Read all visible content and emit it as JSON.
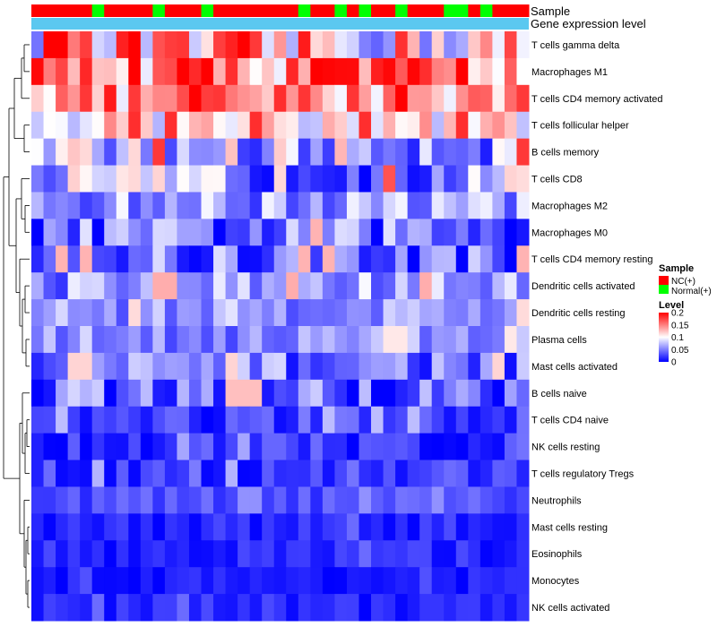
{
  "chart_data": {
    "type": "heatmap",
    "title": "",
    "annotation_labels": {
      "sample": "Sample",
      "expression": "Gene expression level"
    },
    "rows": [
      "T cells gamma delta",
      "Macrophages M1",
      "T cells CD4 memory activated",
      "T cells follicular helper",
      "B cells memory",
      "T cells CD8",
      "Macrophages M2",
      "Macrophages M0",
      "T cells CD4 memory resting",
      "Dendritic cells activated",
      "Dendritic cells resting",
      "Plasma cells",
      "Mast cells activated",
      "B cells naive",
      "T cells CD4 naive",
      "NK cells resting",
      "T cells regulatory  Tregs",
      "Neutrophils",
      "Mast cells resting",
      "Eosinophils",
      "Monocytes",
      "NK cells activated"
    ],
    "sample_groups": [
      "NC",
      "NC",
      "NC",
      "NC",
      "NC",
      "Normal",
      "NC",
      "NC",
      "NC",
      "NC",
      "Normal",
      "NC",
      "NC",
      "NC",
      "Normal",
      "NC",
      "NC",
      "NC",
      "NC",
      "NC",
      "NC",
      "NC",
      "Normal",
      "NC",
      "NC",
      "Normal",
      "NC",
      "Normal",
      "NC",
      "NC",
      "Normal",
      "NC",
      "NC",
      "NC",
      "Normal",
      "Normal",
      "NC",
      "Normal",
      "NC",
      "NC",
      "NC"
    ],
    "column_count": 41,
    "color_scale": {
      "min": 0,
      "max": 0.2,
      "low": "#0000ff",
      "mid": "#ffffff",
      "high": "#ff0000",
      "mid_value": 0.1
    },
    "legend": {
      "sample_title": "Sample",
      "sample_entries": [
        {
          "label": "NC(+)",
          "color": "#ff0000"
        },
        {
          "label": "Normal(+)",
          "color": "#00ff00"
        }
      ],
      "level_title": "Level",
      "level_ticks": [
        "0.2",
        "0.15",
        "0.1",
        "0.05",
        "0"
      ],
      "level_tick_values": [
        0.2,
        0.15,
        0.1,
        0.05,
        0
      ]
    },
    "row_base_levels": [
      0.11,
      0.15,
      0.14,
      0.11,
      0.07,
      0.06,
      0.06,
      0.04,
      0.04,
      0.06,
      0.06,
      0.055,
      0.045,
      0.035,
      0.02,
      0.02,
      0.025,
      0.03,
      0.015,
      0.015,
      0.01,
      0.015
    ],
    "row_variation": [
      0.08,
      0.06,
      0.05,
      0.04,
      0.06,
      0.06,
      0.04,
      0.05,
      0.05,
      0.04,
      0.03,
      0.03,
      0.04,
      0.05,
      0.03,
      0.025,
      0.025,
      0.015,
      0.015,
      0.015,
      0.012,
      0.015
    ]
  },
  "colors": {
    "nc": "#ff0000",
    "normal": "#00ff00",
    "expression_bar": "#5bc8f0",
    "dendrogram": "#000000"
  }
}
